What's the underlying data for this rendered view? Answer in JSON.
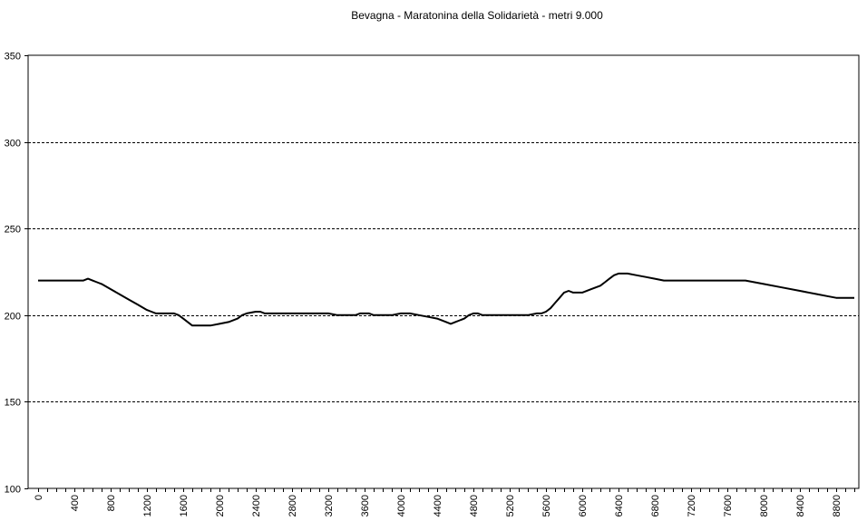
{
  "chart_data": {
    "type": "line",
    "title": "Bevagna - Maratonina della Solidarietà - metri 9.000",
    "xlabel": "",
    "ylabel": "",
    "xlim": [
      0,
      9000
    ],
    "ylim": [
      100,
      350
    ],
    "y_ticks": [
      100,
      150,
      200,
      250,
      300,
      350
    ],
    "x_ticks": [
      0,
      400,
      800,
      1200,
      1600,
      2000,
      2400,
      2800,
      3200,
      3600,
      4000,
      4400,
      4800,
      5200,
      5600,
      6000,
      6400,
      6800,
      7200,
      7600,
      8000,
      8400,
      8800
    ],
    "grid": "horizontal dashed",
    "legend": "none",
    "line_color": "#000000",
    "series": [
      {
        "x": [
          0,
          100,
          200,
          300,
          400,
          500,
          550,
          600,
          650,
          700,
          800,
          900,
          1000,
          1100,
          1200,
          1250,
          1300,
          1400,
          1500,
          1550,
          1600,
          1650,
          1700,
          1750,
          1800,
          1900,
          2000,
          2100,
          2200,
          2250,
          2300,
          2400,
          2450,
          2500,
          2600,
          2700,
          2800,
          2900,
          2950,
          3000,
          3100,
          3200,
          3300,
          3400,
          3500,
          3550,
          3600,
          3650,
          3700,
          3800,
          3900,
          4000,
          4100,
          4200,
          4300,
          4400,
          4500,
          4550,
          4600,
          4650,
          4700,
          4750,
          4800,
          4850,
          4900,
          5000,
          5100,
          5200,
          5300,
          5400,
          5500,
          5550,
          5600,
          5650,
          5700,
          5750,
          5800,
          5850,
          5900,
          6000,
          6100,
          6200,
          6250,
          6300,
          6350,
          6400,
          6450,
          6500,
          6600,
          6700,
          6800,
          6900,
          7000,
          7200,
          7400,
          7600,
          7800,
          8000,
          8200,
          8400,
          8600,
          8700,
          8800,
          9000
        ],
        "values": [
          220,
          220,
          220,
          220,
          220,
          220,
          221,
          220,
          219,
          218,
          215,
          212,
          209,
          206,
          203,
          202,
          201,
          201,
          201,
          200,
          198,
          196,
          194,
          194,
          194,
          194,
          195,
          196,
          198,
          200,
          201,
          202,
          202,
          201,
          201,
          201,
          201,
          201,
          201,
          201,
          201,
          201,
          200,
          200,
          200,
          201,
          201,
          201,
          200,
          200,
          200,
          201,
          201,
          200,
          199,
          198,
          196,
          195,
          196,
          197,
          198,
          200,
          201,
          201,
          200,
          200,
          200,
          200,
          200,
          200,
          201,
          201,
          202,
          204,
          207,
          210,
          213,
          214,
          213,
          213,
          215,
          217,
          219,
          221,
          223,
          224,
          224,
          224,
          223,
          222,
          221,
          220,
          220,
          220,
          220,
          220,
          220,
          218,
          216,
          214,
          212,
          211,
          210,
          210
        ]
      }
    ]
  }
}
